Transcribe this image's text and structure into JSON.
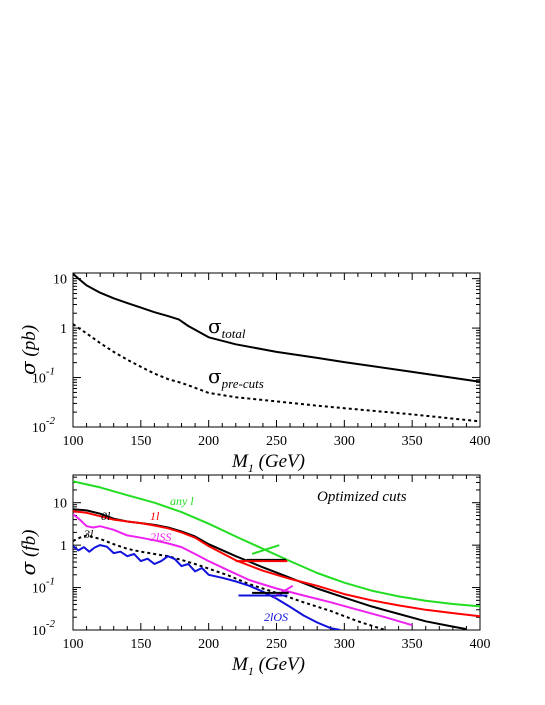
{
  "chart_data": [
    {
      "type": "line",
      "xlabel_main": "M",
      "xlabel_sub": "1",
      "xlabel_unit": " (GeV)",
      "ylabel_sym": "σ",
      "ylabel_unit": " (pb)",
      "xlim": [
        100,
        400
      ],
      "ylim": [
        0.01,
        13
      ],
      "yscale": "log",
      "xticks": [
        100,
        150,
        200,
        250,
        300,
        350,
        400
      ],
      "yticks": [
        {
          "v": 10,
          "base": "10",
          "sup": ""
        },
        {
          "v": 1,
          "base": "1",
          "sup": ""
        },
        {
          "v": 0.1,
          "base": "10",
          "sup": "-1"
        },
        {
          "v": 0.01,
          "base": "10",
          "sup": "-2"
        }
      ],
      "series": [
        {
          "name": "σ",
          "name_sub": "total",
          "color": "#000000",
          "style": "solid",
          "x": [
            100,
            105,
            110,
            120,
            130,
            140,
            150,
            160,
            170,
            178,
            185,
            200,
            220,
            250,
            280,
            300,
            350,
            400
          ],
          "y": [
            12.5,
            9.5,
            7.3,
            5.2,
            4.0,
            3.2,
            2.6,
            2.1,
            1.75,
            1.5,
            1.1,
            0.65,
            0.47,
            0.33,
            0.25,
            0.205,
            0.13,
            0.082
          ]
        },
        {
          "name": "σ",
          "name_sub": "pre-cuts",
          "color": "#000000",
          "style": "dotted",
          "x": [
            100,
            110,
            120,
            130,
            140,
            150,
            160,
            170,
            180,
            190,
            200,
            220,
            250,
            280,
            300,
            350,
            400
          ],
          "y": [
            1.2,
            0.78,
            0.5,
            0.33,
            0.23,
            0.165,
            0.12,
            0.093,
            0.078,
            0.062,
            0.049,
            0.04,
            0.033,
            0.027,
            0.024,
            0.018,
            0.013
          ]
        }
      ]
    },
    {
      "type": "line",
      "title": "Optimized cuts",
      "xlabel_main": "M",
      "xlabel_sub": "1",
      "xlabel_unit": " (GeV)",
      "ylabel_sym": "σ",
      "ylabel_unit": " (fb)",
      "xlim": [
        100,
        400
      ],
      "ylim": [
        0.01,
        45
      ],
      "yscale": "log",
      "xticks": [
        100,
        150,
        200,
        250,
        300,
        350,
        400
      ],
      "yticks": [
        {
          "v": 10,
          "base": "10",
          "sup": ""
        },
        {
          "v": 1,
          "base": "1",
          "sup": ""
        },
        {
          "v": 0.1,
          "base": "10",
          "sup": "-1"
        },
        {
          "v": 0.01,
          "base": "10",
          "sup": "-2"
        }
      ],
      "series": [
        {
          "name": "any l",
          "color": "#22dd22",
          "style": "solid",
          "x": [
            100,
            120,
            140,
            160,
            180,
            200,
            220,
            240,
            260,
            280,
            300,
            320,
            340,
            360,
            380,
            400
          ],
          "y": [
            32,
            23,
            15,
            10,
            6.0,
            3.2,
            1.6,
            0.82,
            0.42,
            0.22,
            0.13,
            0.085,
            0.062,
            0.049,
            0.041,
            0.036
          ]
        },
        {
          "name": "0l",
          "color": "#000000",
          "style": "solid",
          "x": [
            100,
            110,
            120,
            130,
            140,
            150,
            160,
            170,
            180,
            190,
            200,
            220,
            240,
            260,
            280,
            300,
            320,
            340,
            360,
            380,
            390
          ],
          "y": [
            7.0,
            6.6,
            5.5,
            4.2,
            3.6,
            3.3,
            3.0,
            2.6,
            2.1,
            1.6,
            1.05,
            0.55,
            0.3,
            0.17,
            0.095,
            0.058,
            0.036,
            0.024,
            0.016,
            0.012,
            0.0105
          ]
        },
        {
          "name": "1l",
          "color": "#ff0000",
          "style": "solid",
          "x": [
            100,
            110,
            120,
            130,
            140,
            150,
            160,
            170,
            180,
            190,
            200,
            220,
            240,
            260,
            280,
            300,
            320,
            340,
            360,
            380,
            400
          ],
          "y": [
            6.3,
            5.8,
            4.8,
            4.0,
            3.6,
            3.3,
            2.9,
            2.5,
            2.0,
            1.5,
            0.95,
            0.44,
            0.25,
            0.16,
            0.11,
            0.07,
            0.05,
            0.038,
            0.03,
            0.025,
            0.021
          ]
        },
        {
          "name": "2lSS",
          "color": "#ee22ee",
          "style": "solid",
          "x": [
            100,
            105,
            110,
            115,
            120,
            130,
            140,
            150,
            160,
            170,
            180,
            190,
            200,
            215,
            230,
            250,
            270,
            290,
            310,
            330,
            350
          ],
          "y": [
            5.4,
            4.0,
            2.8,
            2.6,
            2.8,
            2.3,
            1.7,
            1.5,
            1.3,
            1.1,
            0.9,
            0.62,
            0.42,
            0.25,
            0.15,
            0.095,
            0.065,
            0.045,
            0.03,
            0.02,
            0.013
          ]
        },
        {
          "name": "3l",
          "color": "#000000",
          "style": "dotted",
          "x": [
            100,
            105,
            110,
            120,
            130,
            140,
            150,
            160,
            170,
            180,
            190,
            200,
            215,
            230,
            250,
            270,
            290,
            310,
            330
          ],
          "y": [
            1.25,
            1.5,
            1.7,
            1.4,
            1.05,
            0.82,
            0.7,
            0.62,
            0.55,
            0.45,
            0.36,
            0.28,
            0.19,
            0.12,
            0.075,
            0.045,
            0.028,
            0.016,
            0.01
          ]
        },
        {
          "name": "2lOS",
          "color": "#1111dd",
          "style": "solid",
          "x": [
            100,
            104,
            108,
            112,
            116,
            120,
            125,
            130,
            135,
            140,
            145,
            150,
            155,
            160,
            165,
            170,
            175,
            180,
            185,
            190,
            195,
            200,
            210,
            220,
            230,
            240,
            250,
            260,
            270,
            280,
            290,
            297
          ],
          "y": [
            0.95,
            0.75,
            0.9,
            0.7,
            0.88,
            1.0,
            0.92,
            0.65,
            0.7,
            0.55,
            0.62,
            0.42,
            0.48,
            0.36,
            0.42,
            0.55,
            0.47,
            0.32,
            0.36,
            0.24,
            0.29,
            0.2,
            0.17,
            0.14,
            0.11,
            0.08,
            0.055,
            0.035,
            0.022,
            0.015,
            0.011,
            0.01
          ]
        }
      ],
      "markers": [
        {
          "color": "#22dd22",
          "x1": 232,
          "x2": 252,
          "y1": 0.62,
          "y2": 1.0
        },
        {
          "color": "#000000",
          "x1": 228,
          "x2": 257,
          "y1": 0.45,
          "y2": 0.45
        },
        {
          "color": "#ff0000",
          "x1": 220,
          "x2": 258,
          "y1": 0.42,
          "y2": 0.42
        },
        {
          "color": "#ee22ee",
          "x1": 248,
          "x2": 262,
          "y1": 0.06,
          "y2": 0.11
        },
        {
          "color": "#000000",
          "x1": 232,
          "x2": 259,
          "y1": 0.075,
          "y2": 0.075
        },
        {
          "color": "#1111dd",
          "x1": 222,
          "x2": 258,
          "y1": 0.065,
          "y2": 0.065
        }
      ]
    }
  ]
}
